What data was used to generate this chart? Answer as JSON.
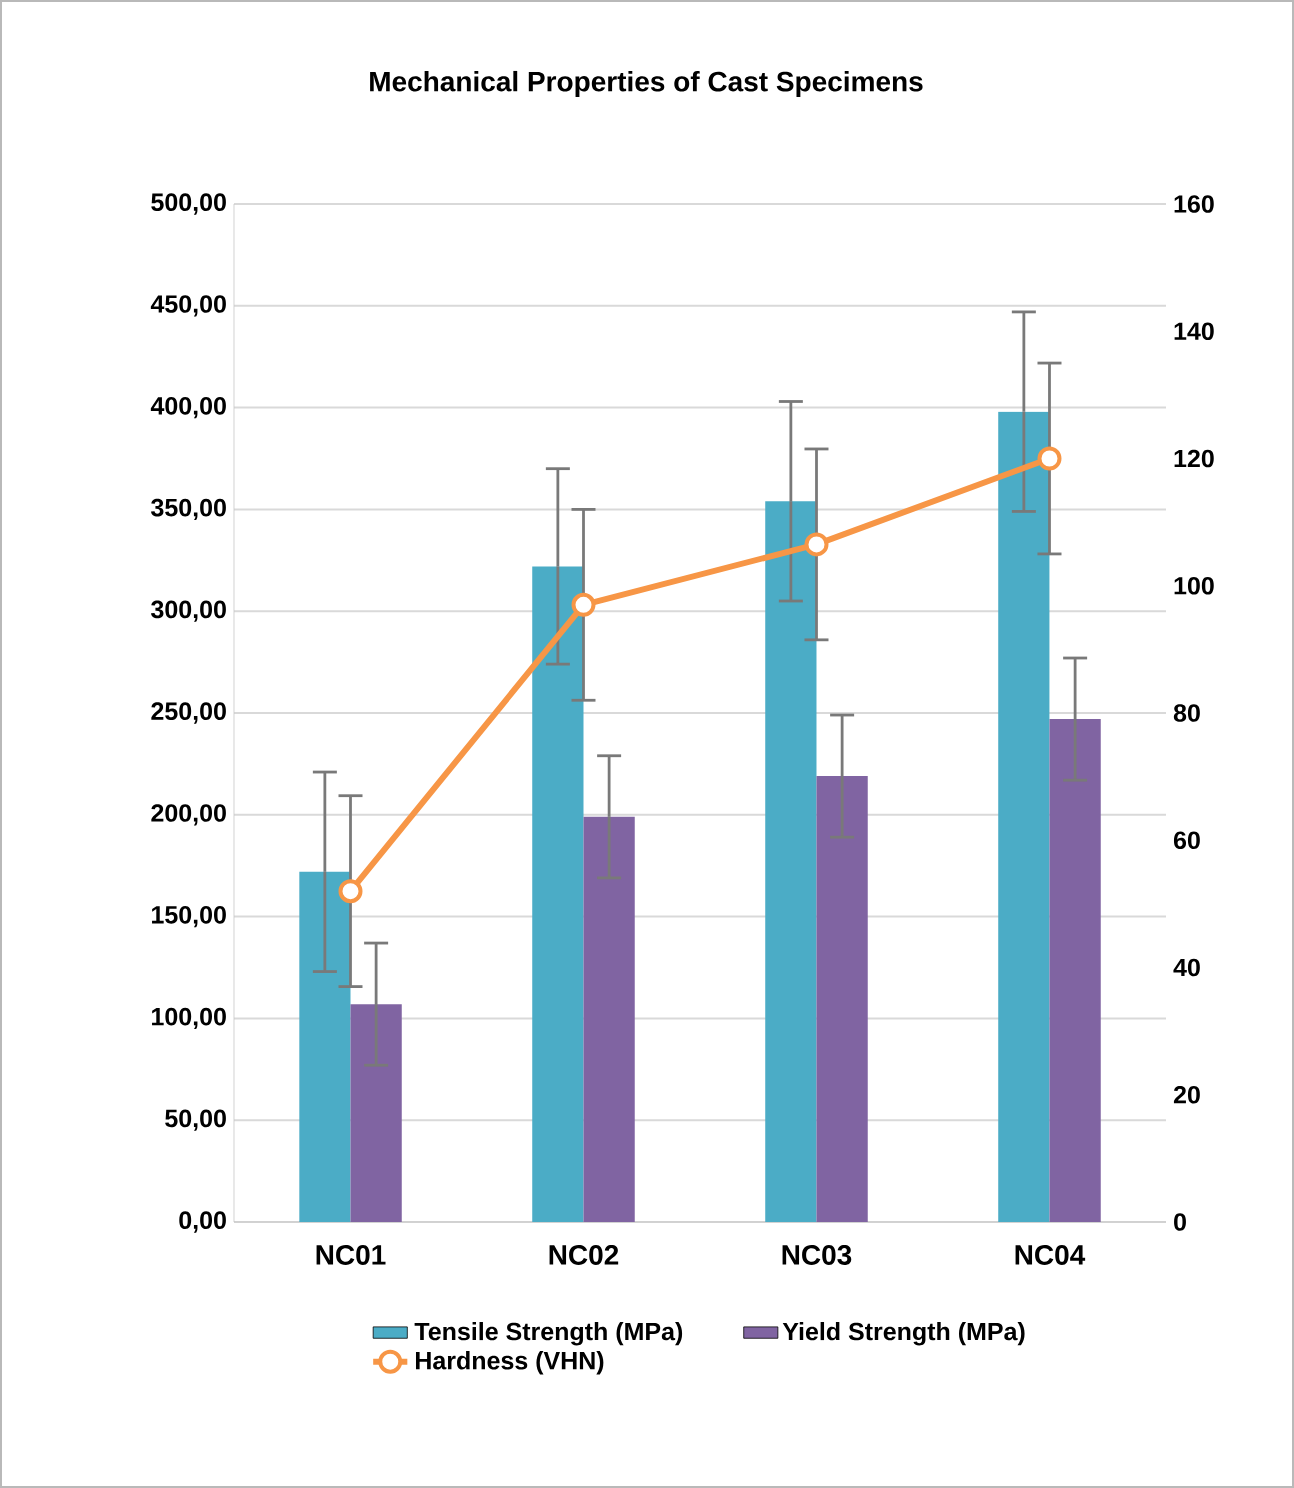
{
  "chart_data": {
    "type": "bar",
    "title": "Mechanical Properties of Cast Specimens",
    "categories": [
      "NC01",
      "NC02",
      "NC03",
      "NC04"
    ],
    "series": [
      {
        "name": "Tensile Strength (MPa)",
        "color": "#4bacc6",
        "values": [
          172,
          322,
          354,
          398
        ],
        "errors": [
          49,
          48,
          49,
          49
        ]
      },
      {
        "name": "Yield Strength (MPa)",
        "color": "#8064a2",
        "values": [
          107,
          199,
          219,
          247
        ],
        "errors": [
          30,
          30,
          30,
          30
        ]
      },
      {
        "name": "Hardness (VHN)",
        "type": "line",
        "axis": "y2",
        "color": "#f79646",
        "values": [
          52,
          97,
          106.5,
          120
        ],
        "errors": [
          15,
          15,
          15,
          15
        ]
      }
    ],
    "ylim": [
      0,
      500
    ],
    "yticks": [
      {
        "value": 0,
        "label": "0,00"
      },
      {
        "value": 50,
        "label": "50,00"
      },
      {
        "value": 100,
        "label": "100,00"
      },
      {
        "value": 150,
        "label": "150,00"
      },
      {
        "value": 200,
        "label": "200,00"
      },
      {
        "value": 250,
        "label": "250,00"
      },
      {
        "value": 300,
        "label": "300,00"
      },
      {
        "value": 350,
        "label": "350,00"
      },
      {
        "value": 400,
        "label": "400,00"
      },
      {
        "value": 450,
        "label": "450,00"
      },
      {
        "value": 500,
        "label": "500,00"
      }
    ],
    "y2lim": [
      0,
      160
    ],
    "y2ticks": [
      0,
      20,
      40,
      60,
      80,
      100,
      120,
      140,
      160
    ],
    "grid": "y",
    "legend": "bottom",
    "marker": "circle"
  }
}
